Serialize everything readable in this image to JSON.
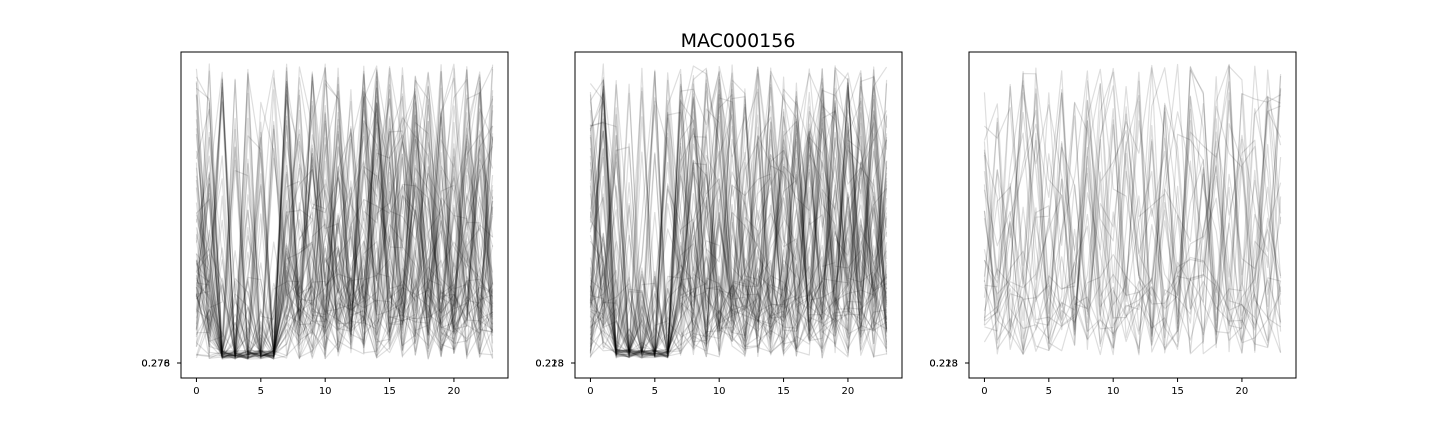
{
  "figure": {
    "title": "MAC000156"
  },
  "colors": {
    "line": "#000000",
    "background": "#ffffff"
  },
  "chart_data": [
    {
      "type": "line",
      "panel": "left",
      "x_range": [
        0,
        23
      ],
      "xlim": [
        -1.2,
        24.2
      ],
      "xticks": [
        0,
        5,
        10,
        15,
        20
      ],
      "ytick_labels_overlapping": [
        "0.276",
        "0.278"
      ],
      "series_count": 80,
      "line_alpha": 0.13,
      "legend": "none",
      "grid": false
    },
    {
      "type": "line",
      "panel": "middle",
      "x_range": [
        0,
        23
      ],
      "xlim": [
        -1.2,
        24.2
      ],
      "xticks": [
        0,
        5,
        10,
        15,
        20
      ],
      "ytick_labels_overlapping": [
        "0.218",
        "0.223"
      ],
      "series_count": 80,
      "line_alpha": 0.13,
      "legend": "none",
      "grid": false
    },
    {
      "type": "line",
      "panel": "right",
      "x_range": [
        0,
        23
      ],
      "xlim": [
        -1.2,
        24.2
      ],
      "xticks": [
        0,
        5,
        10,
        15,
        20
      ],
      "ytick_labels_overlapping": [
        "0.218",
        "0.223"
      ],
      "series_count": 30,
      "line_alpha": 0.13,
      "legend": "none",
      "grid": false
    }
  ]
}
